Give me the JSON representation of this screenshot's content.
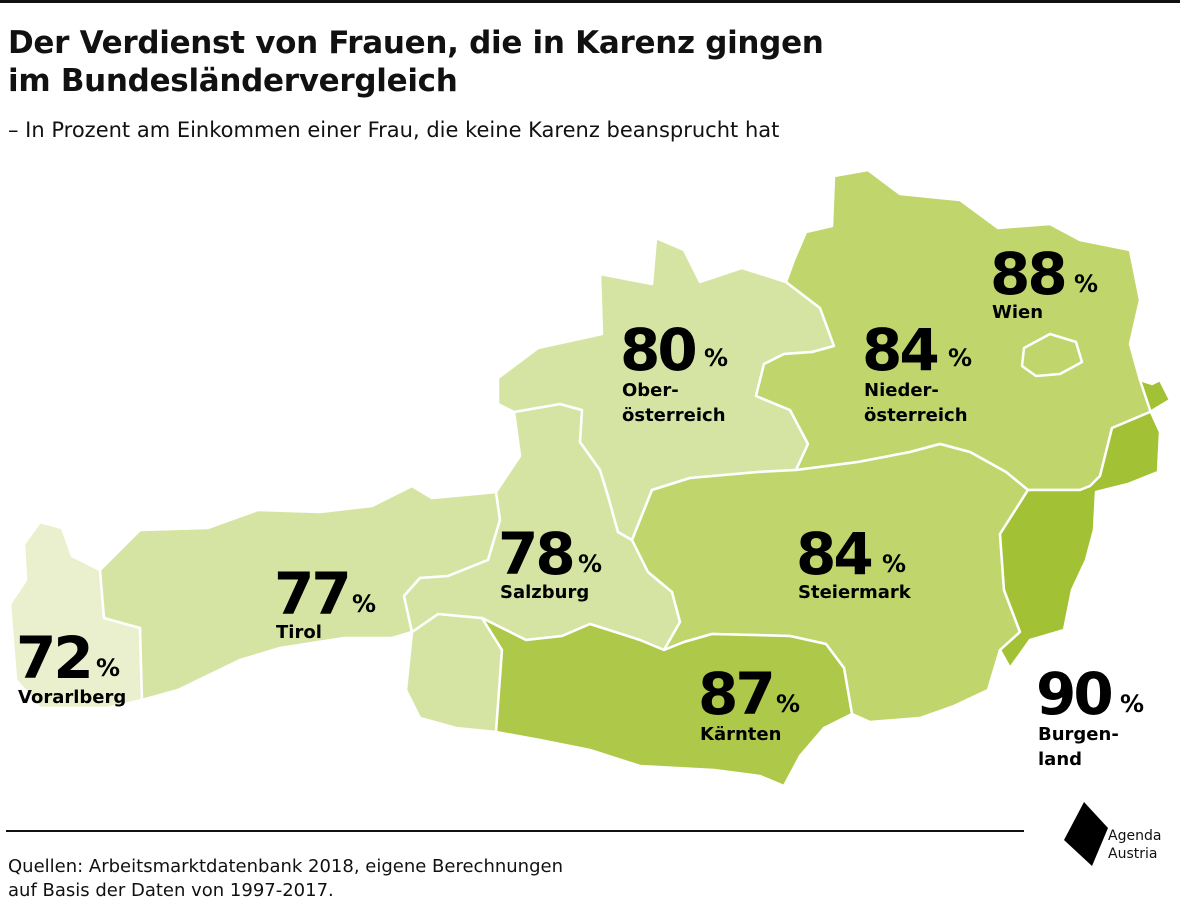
{
  "title_line1": "Der Verdienst von Frauen, die in Karenz gingen",
  "title_line2": "im Bundesländervergleich",
  "subtitle": "– In Prozent am Einkommen einer Frau, die keine Karenz beansprucht hat",
  "percent_sign": "%",
  "regions": [
    {
      "name": "Vorarlberg",
      "value": 72,
      "color": "#eaf0cd"
    },
    {
      "name": "Tirol",
      "value": 77,
      "color": "#d6e4a3"
    },
    {
      "name": "Salzburg",
      "value": 78,
      "color": "#d6e4a3"
    },
    {
      "name": "Oberösterreich",
      "label_line1": "Ober-",
      "label_line2": "österreich",
      "value": 80,
      "color": "#d6e4a3"
    },
    {
      "name": "Niederösterreich",
      "label_line1": "Nieder-",
      "label_line2": "österreich",
      "value": 84,
      "color": "#c0d66d"
    },
    {
      "name": "Wien",
      "value": 88,
      "color": "#c0d66d"
    },
    {
      "name": "Steiermark",
      "value": 84,
      "color": "#c0d66d"
    },
    {
      "name": "Kärnten",
      "value": 87,
      "color": "#aec84a"
    },
    {
      "name": "Burgenland",
      "label_line1": "Burgen-",
      "label_line2": "land",
      "value": 90,
      "color": "#a2c135"
    }
  ],
  "source_line1": "Quellen: Arbeitsmarktdatenbank 2018, eigene Berechnungen",
  "source_line2": "auf Basis der Daten von 1997-2017.",
  "logo_line1": "Agenda",
  "logo_line2": "Austria"
}
